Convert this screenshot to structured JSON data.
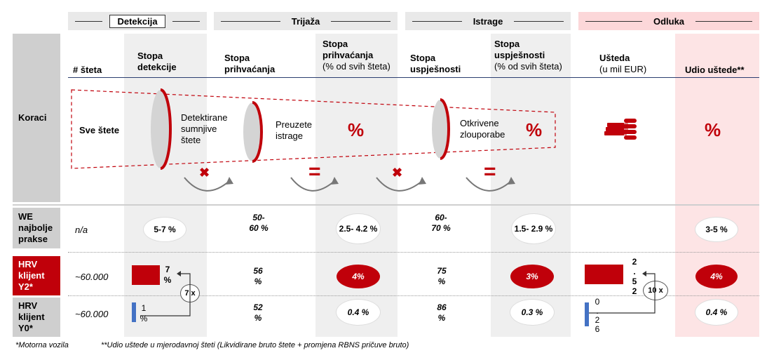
{
  "phases": {
    "detekcija": "Detekcija",
    "trijaza": "Trijaža",
    "istrage": "Istrage",
    "odluka": "Odluka"
  },
  "headers": {
    "steta": "# šteta",
    "stopa_detekcije": "Stopa detekcije",
    "stopa_prihvacanja": "Stopa prihvaćanja",
    "stopa_prihvacanja_svih": "Stopa prihvaćanja",
    "stopa_prihvacanja_svih_sub": "(% od svih šteta)",
    "stopa_uspjesnosti": "Stopa uspješnosti",
    "stopa_uspjesnosti_svih": "Stopa uspješnosti",
    "stopa_uspjesnosti_svih_sub": "(% od svih šteta)",
    "usteda": "Ušteda",
    "usteda_sub": "(u mil EUR)",
    "udio_ustede": "Udio uštede**"
  },
  "rows": {
    "koraci": "Koraci",
    "we": "WE najbolje prakse",
    "hrv_y2": "HRV klijent Y2*",
    "hrv_y0": "HRV klijent Y0*"
  },
  "funnel": {
    "sve_stete": "Sve štete",
    "detektirane": "Detektirane sumnjive štete",
    "preuzete": "Preuzete istrage",
    "otkrivene": "Otkrivene zlouporabe",
    "pct": "%",
    "op_x": "✖",
    "op_eq": "="
  },
  "we": {
    "steta": "n/a",
    "detekcija": "5-7 %",
    "prihvacanje": "50- 60 %",
    "prihvacanje_svih": "2.5- 4.2 %",
    "uspjesnost": "60- 70 %",
    "uspjesnost_svih": "1.5- 2.9 %",
    "udio": "3-5 %"
  },
  "y2": {
    "steta": "~60.000",
    "detekcija": "7 %",
    "multiplier": "7 x",
    "prihvacanje": "56 %",
    "prihvacanje_svih": "4%",
    "uspjesnost": "75 %",
    "uspjesnost_svih": "3%",
    "usteda": "2 . 5 2",
    "usteda_multiplier": "10 x",
    "udio": "4%"
  },
  "y0": {
    "steta": "~60.000",
    "detekcija": "1 %",
    "prihvacanje": "52 %",
    "prihvacanje_svih": "0.4 %",
    "uspjesnost": "86 %",
    "uspjesnost_svih": "0.3 %",
    "usteda": "0 . 2 6",
    "udio": "0.4 %"
  },
  "footnotes": {
    "f1": "*Motorna vozila",
    "f2": "**Udio uštede u mjerodavnoj šteti (Likvidirane bruto štete + promjena RBNS pričuve bruto)"
  },
  "chart_data": {
    "type": "bar",
    "categories": [
      "HRV klijent Y2*",
      "HRV klijent Y0*"
    ],
    "series": [
      {
        "name": "Stopa detekcije",
        "values": [
          7,
          1
        ]
      },
      {
        "name": "Ušteda",
        "values": [
          2.52,
          0.26
        ]
      }
    ]
  },
  "colors": {
    "accent": "#c0000a",
    "blue": "#4472c4",
    "grey": "#efefef",
    "pink": "#fde4e5"
  }
}
